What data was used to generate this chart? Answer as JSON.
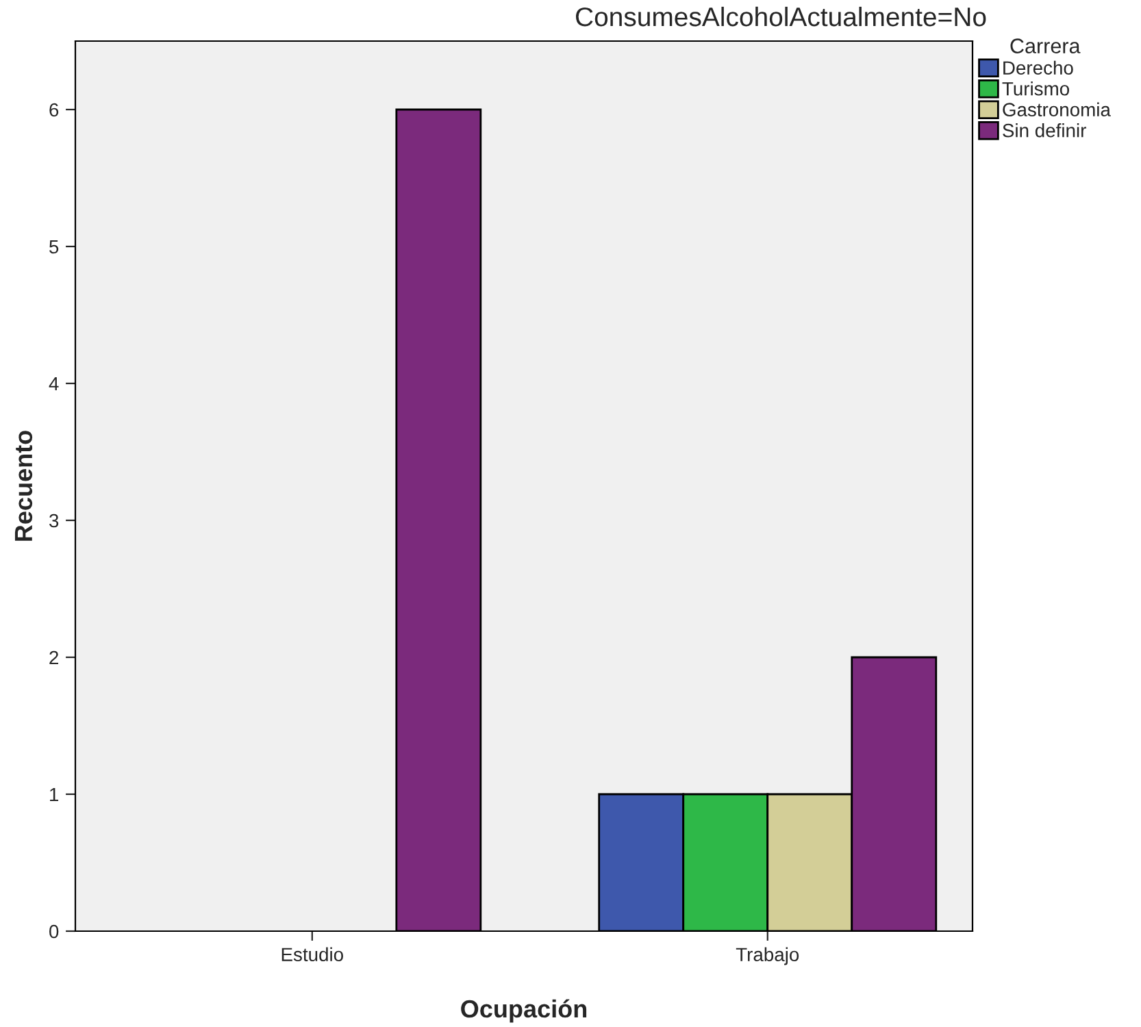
{
  "chart_data": {
    "type": "bar",
    "title": "ConsumesAlcoholActualmente=No",
    "xlabel": "Ocupación",
    "ylabel": "Recuento",
    "legend_title": "Carrera",
    "categories": [
      "Estudio",
      "Trabajo"
    ],
    "series": [
      {
        "name": "Derecho",
        "color": "#3e58ac",
        "values": [
          null,
          1
        ]
      },
      {
        "name": "Turismo",
        "color": "#2eb848",
        "values": [
          null,
          1
        ]
      },
      {
        "name": "Gastronomia",
        "color": "#d3ce97",
        "values": [
          null,
          1
        ]
      },
      {
        "name": "Sin definir",
        "color": "#7b2a7c",
        "values": [
          6,
          2
        ]
      }
    ],
    "ylim": [
      0,
      6.5
    ],
    "yticks": [
      0,
      1,
      2,
      3,
      4,
      5,
      6
    ],
    "grid": false,
    "legend": "top right"
  }
}
